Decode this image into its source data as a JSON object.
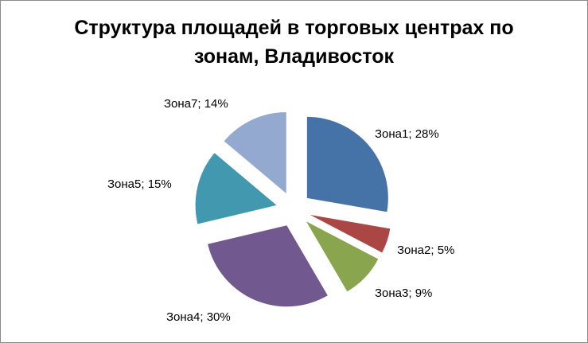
{
  "chart_data": {
    "type": "pie",
    "title": "Структура  площадей в торговых центрах по\nзонам, Владивосток",
    "slices": [
      {
        "name": "Зона1",
        "value": 28,
        "label": "Зона1; 28%",
        "color": "#4572A7"
      },
      {
        "name": "Зона2",
        "value": 5,
        "label": "Зона2; 5%",
        "color": "#AA4643"
      },
      {
        "name": "Зона3",
        "value": 9,
        "label": "Зона3; 9%",
        "color": "#89A54E"
      },
      {
        "name": "Зона4",
        "value": 30,
        "label": "Зона4; 30%",
        "color": "#71588F"
      },
      {
        "name": "Зона5",
        "value": 15,
        "label": "Зона5; 15%",
        "color": "#4198AF"
      },
      {
        "name": "Зона7",
        "value": 14,
        "label": "Зона7; 14%",
        "color": "#93A9CF"
      }
    ],
    "exploded": true,
    "legend": "none"
  }
}
